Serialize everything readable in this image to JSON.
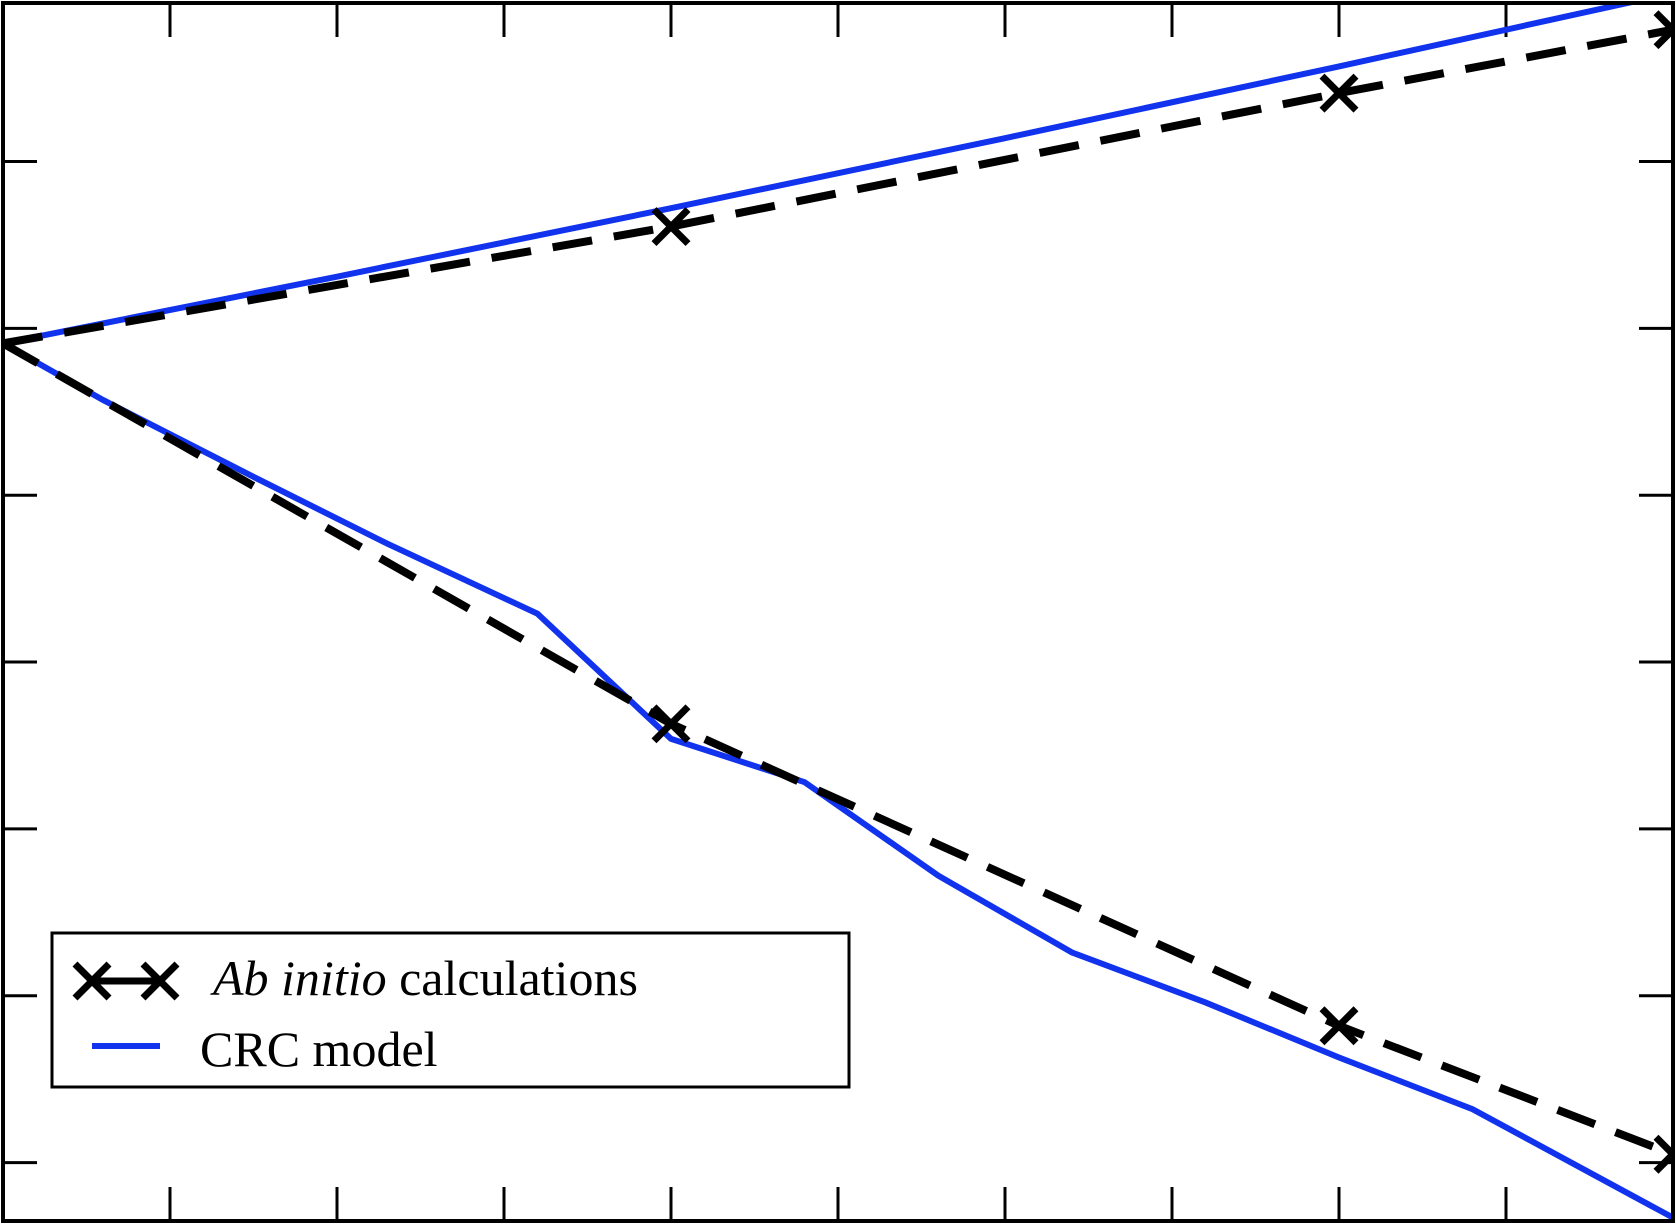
{
  "chart_data": {
    "type": "line",
    "title": "",
    "xlabel": "",
    "ylabel": "",
    "xlim": [
      0,
      10
    ],
    "ylim": [
      0,
      7.3
    ],
    "x_ticks": [
      0,
      1,
      2,
      3,
      4,
      5,
      6,
      7,
      8,
      9,
      10
    ],
    "y_ticks": [
      0.35,
      1.35,
      2.35,
      3.35,
      4.35,
      5.35,
      6.35,
      7.35
    ],
    "tick_labels_visible": false,
    "grid": false,
    "legend_position": "lower-left",
    "series": [
      {
        "name": "Ab initio calculations",
        "style": "dashed-with-x-markers",
        "color": "#000000",
        "branches": [
          {
            "x": [
              0,
              4,
              8,
              10
            ],
            "y": [
              5.26,
              5.96,
              6.76,
              7.14
            ]
          },
          {
            "x": [
              0,
              4,
              8,
              10
            ],
            "y": [
              5.26,
              2.98,
              1.17,
              0.4
            ]
          }
        ]
      },
      {
        "name": "CRC model",
        "style": "solid",
        "color": "#1133ee",
        "branches": [
          {
            "x": [
              0,
              2,
              4,
              6,
              8,
              10
            ],
            "y": [
              5.26,
              5.66,
              6.07,
              6.49,
              6.92,
              7.36
            ]
          },
          {
            "x": [
              0,
              0.6,
              1.5,
              2.3,
              3.2,
              4.0,
              4.8,
              5.6,
              6.4,
              7.2,
              8.0,
              8.8,
              10
            ],
            "y": [
              5.26,
              4.92,
              4.46,
              4.06,
              3.64,
              2.89,
              2.63,
              2.07,
              1.61,
              1.31,
              0.98,
              0.67,
              0.02
            ]
          }
        ]
      }
    ],
    "legend": {
      "entries": [
        {
          "italic_part": "Ab initio",
          "plain_part": " calculations"
        },
        {
          "italic_part": "",
          "plain_part": "CRC model"
        }
      ]
    }
  }
}
